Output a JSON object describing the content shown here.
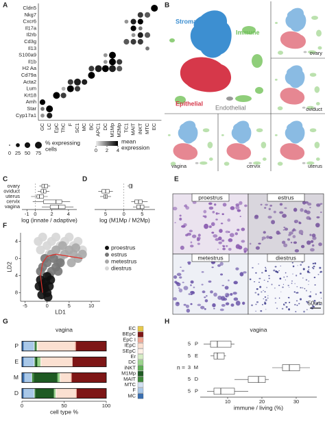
{
  "panel_labels": [
    "A",
    "B",
    "C",
    "D",
    "E",
    "F",
    "G",
    "H"
  ],
  "umap": {
    "groups": [
      "Stromal",
      "Immune",
      "Epithelial",
      "Endothelial"
    ],
    "organs": [
      "ovary",
      "oviduct",
      "vagina",
      "cervix",
      "uterus"
    ]
  },
  "micrographs": {
    "stages": [
      "proestrus",
      "estrus",
      "metestrus",
      "diestrus"
    ],
    "scale_bar": "50um"
  },
  "chart_data": [
    {
      "type": "dot",
      "genes": [
        "Cldn5",
        "Nkg7",
        "Cxcr6",
        "Il17a",
        "Il2rb",
        "Cd3g",
        "Il13",
        "S100a9",
        "Il1b",
        "H2 Aa",
        "Cd79a",
        "Acta2",
        "Lum",
        "Krt18",
        "Amh",
        "Star",
        "Cyp17a1"
      ],
      "cell_types": [
        "GC",
        "LC",
        "EpC",
        "ThC",
        "F",
        "SC1",
        "MC",
        "BC",
        "APC1",
        "DC",
        "M1Mp",
        "M2Mp",
        "TC1",
        "MAIT",
        "iNKT",
        "MTC",
        "EC"
      ],
      "x": [
        "EC",
        "iNKT",
        "MTC",
        "MAIT",
        "iNKT",
        "TC1",
        "MAIT",
        "iNKT",
        "iNKT",
        "MTC",
        "MAIT",
        "TC1",
        "MAIT",
        "iNKT",
        "MTC",
        "M1Mp",
        "DC",
        "M1Mp",
        "M2Mp",
        "DC",
        "DC",
        "APC1",
        "M1Mp",
        "M2Mp",
        "BC",
        "BC",
        "SC1",
        "F",
        "MC",
        "F",
        "SC1",
        "ThC",
        "EpC",
        "ThC",
        "GC",
        "LC",
        "GC",
        "LC",
        "GC"
      ],
      "y": [
        "Cldn5",
        "Nkg7",
        "Nkg7",
        "Cxcr6",
        "Cxcr6",
        "Cxcr6",
        "Il17a",
        "Il17a",
        "Il2rb",
        "Il2rb",
        "Il2rb",
        "Cd3g",
        "Cd3g",
        "Cd3g",
        "Il13",
        "S100a9",
        "S100a9",
        "Il1b",
        "Il1b",
        "Il1b",
        "H2 Aa",
        "H2 Aa",
        "H2 Aa",
        "H2 Aa",
        "H2 Aa",
        "Cd79a",
        "Acta2",
        "Acta2",
        "Acta2",
        "Lum",
        "Lum",
        "Lum",
        "Krt18",
        "Krt18",
        "Amh",
        "Star",
        "Star",
        "Cyp17a1",
        "Cyp17a1"
      ],
      "size": [
        75,
        50,
        50,
        50,
        50,
        25,
        50,
        25,
        50,
        50,
        25,
        50,
        50,
        50,
        25,
        75,
        25,
        75,
        50,
        25,
        75,
        75,
        75,
        50,
        50,
        75,
        75,
        50,
        50,
        75,
        50,
        25,
        75,
        50,
        50,
        75,
        25,
        50,
        25
      ],
      "expression": [
        4,
        3,
        2.5,
        3.5,
        4,
        1.5,
        4,
        2,
        3.5,
        2.5,
        1.5,
        2.5,
        3,
        3,
        2,
        4,
        1.5,
        4,
        3,
        1.5,
        4,
        3.5,
        3.5,
        2.5,
        3,
        4,
        3.5,
        3,
        3.5,
        4,
        3,
        1,
        4,
        3,
        4,
        4,
        2,
        3.5,
        1.5
      ],
      "size_ticks": [
        0,
        25,
        50,
        75
      ],
      "size_label": [
        "% expressing",
        "cells"
      ],
      "color_ticks": [
        0,
        2,
        4
      ],
      "color_label": [
        "mean",
        "expression"
      ]
    },
    {
      "type": "box",
      "categories": [
        "ovary",
        "oviduct",
        "uterus",
        "cervix",
        "vagina"
      ],
      "boxes": [
        {
          "low": 0.5,
          "q1": 0.8,
          "median": 1.1,
          "q3": 1.5,
          "high": 1.8
        },
        {
          "low": 0.3,
          "q1": 0.7,
          "median": 1.0,
          "q3": 1.3,
          "high": 1.7
        },
        {
          "low": -0.5,
          "q1": 0.2,
          "median": 0.5,
          "q3": 1.0,
          "high": 1.5
        },
        {
          "low": -0.3,
          "q1": 1.0,
          "median": 2.5,
          "q3": 3.2,
          "high": 4.2
        },
        {
          "low": 0.8,
          "q1": 1.8,
          "median": 2.8,
          "q3": 3.6,
          "high": 4.6
        }
      ],
      "xlim": [
        -1.6,
        5
      ],
      "xticks": [
        -1,
        0,
        2,
        4
      ],
      "reference": 0,
      "xlabel": "log (innate / adaptive)"
    },
    {
      "type": "box",
      "boxes": [
        {
          "low": 1,
          "q1": 1.5,
          "median": 2,
          "q3": 2.3,
          "high": 2.5
        },
        {
          "low": -7,
          "q1": -6,
          "median": -5,
          "q3": -4,
          "high": -3
        },
        {
          "low": -6.5,
          "q1": -5.5,
          "median": -5,
          "q3": -4.5,
          "high": -3.5
        },
        {
          "low": 2,
          "q1": 3,
          "median": 4,
          "q3": 5,
          "high": 6.5
        },
        {
          "low": 2.5,
          "q1": 3.5,
          "median": 4.5,
          "q3": 5.5,
          "high": 7
        }
      ],
      "xlim": [
        -8,
        8.5
      ],
      "xticks": [
        {
          "value": -5,
          "label": "5"
        },
        0,
        5
      ],
      "reference": 0,
      "xlabel": "log (M1Mp / M2Mp)"
    },
    {
      "type": "scatter",
      "xlabel": "LD1",
      "ylabel": "LD2",
      "xlim": [
        -6,
        12
      ],
      "ylim": [
        -10,
        6
      ],
      "xticks": [
        -5,
        0,
        5,
        10
      ],
      "yticks": [
        4,
        0,
        {
          "value": -4,
          "label": "4"
        },
        {
          "value": -8,
          "label": "8"
        }
      ],
      "series": [
        {
          "name": "proestrus",
          "color": "#111111",
          "x": [
            -1.5,
            -1,
            -0.5,
            0,
            0.5,
            -1.2,
            -0.3,
            0.2,
            -0.8,
            0.8,
            -1.8,
            0
          ],
          "y": [
            -5,
            -6,
            -7,
            -8,
            -6.5,
            -8.5,
            -5.5,
            -9,
            -7,
            -5,
            -6.5,
            -4.2
          ]
        },
        {
          "name": "estrus",
          "color": "#777777",
          "x": [
            -1,
            0,
            1,
            2,
            -0.5,
            0.5,
            1.5,
            3,
            -1.5,
            2.5
          ],
          "y": [
            -2,
            -1,
            -3,
            -2,
            0,
            -4,
            0,
            -1,
            -3,
            -3
          ]
        },
        {
          "name": "metestrus",
          "color": "#a8a8a8",
          "x": [
            1,
            2,
            3,
            4,
            5,
            6,
            7,
            8,
            3.5,
            5.5,
            2.5,
            6.5
          ],
          "y": [
            1,
            2,
            0,
            1,
            2,
            1,
            0,
            1,
            3,
            -1,
            -1,
            2.5
          ]
        },
        {
          "name": "diestrus",
          "color": "#d6d6d6",
          "x": [
            -2,
            -1,
            0,
            1,
            2,
            3,
            4,
            5,
            6,
            -1.5,
            0.5,
            2.5,
            7,
            8
          ],
          "y": [
            4,
            5,
            3,
            4,
            5,
            3,
            4,
            5,
            3,
            2,
            1,
            2,
            4,
            2
          ]
        }
      ],
      "curve": {
        "color": "#e0302a",
        "x": [
          -1,
          -1.5,
          -1,
          0,
          2,
          5,
          8
        ],
        "y": [
          -8,
          -4,
          -1,
          0.5,
          1,
          0.5,
          0
        ]
      }
    },
    {
      "type": "bar",
      "title": "vagina",
      "categories": [
        "P",
        "E",
        "M",
        "D"
      ],
      "xlim": [
        0,
        100
      ],
      "xticks": [
        0,
        50,
        100
      ],
      "xlabel": "cell type %",
      "series": [
        {
          "name": "MC",
          "color": "#3a6fb0",
          "values": [
            2,
            2,
            3,
            2
          ]
        },
        {
          "name": "F",
          "color": "#a9c8e8",
          "values": [
            12,
            12,
            8,
            12
          ]
        },
        {
          "name": "MTC",
          "color": "#d2e0f2",
          "values": [
            1,
            1,
            1,
            1
          ]
        },
        {
          "name": "MAIT",
          "color": "#3f8a3b",
          "values": [
            1,
            1,
            2,
            1
          ]
        },
        {
          "name": "M1Mp",
          "color": "#1e5a23",
          "values": [
            1,
            2,
            28,
            22
          ]
        },
        {
          "name": "iNKT",
          "color": "#5fae56",
          "values": [
            0,
            1,
            1,
            0
          ]
        },
        {
          "name": "DC",
          "color": "#9bd38d",
          "values": [
            1,
            3,
            2,
            2
          ]
        },
        {
          "name": "Er",
          "color": "#d5ecc4",
          "values": [
            0,
            0,
            0,
            0
          ]
        },
        {
          "name": "SEpC",
          "color": "#fdf0e6",
          "values": [
            1,
            1,
            1,
            1
          ]
        },
        {
          "name": "IEpC",
          "color": "#fbe0d1",
          "values": [
            44,
            37,
            12,
            23
          ]
        },
        {
          "name": "EpC I",
          "color": "#f0a896",
          "values": [
            1,
            0,
            1,
            1
          ]
        },
        {
          "name": "BEpC",
          "color": "#7e1616",
          "values": [
            36,
            40,
            41,
            35
          ]
        },
        {
          "name": "EC",
          "color": "#e6c84a",
          "values": [
            0,
            0,
            0,
            0
          ]
        }
      ]
    },
    {
      "type": "box",
      "title": "vagina",
      "categories": [
        "P",
        "E",
        "M",
        "D",
        "P"
      ],
      "n": [
        5,
        5,
        3,
        5,
        5
      ],
      "n_label": "n =",
      "boxes": [
        {
          "low": 3,
          "q1": 5,
          "median": 7,
          "q3": 11,
          "high": 12
        },
        {
          "low": 5,
          "q1": 6,
          "median": 7,
          "q3": 9,
          "high": 9.5
        },
        {
          "low": 23,
          "q1": 26,
          "median": 28,
          "q3": 31,
          "high": 34
        },
        {
          "low": 12,
          "q1": 16,
          "median": 19,
          "q3": 21,
          "high": 22
        },
        {
          "low": 4,
          "q1": 6,
          "median": 8,
          "q3": 12,
          "high": 16
        }
      ],
      "xlim": [
        2,
        36
      ],
      "xticks": [
        10,
        20,
        30
      ],
      "xlabel": "immune / living (%)"
    }
  ]
}
